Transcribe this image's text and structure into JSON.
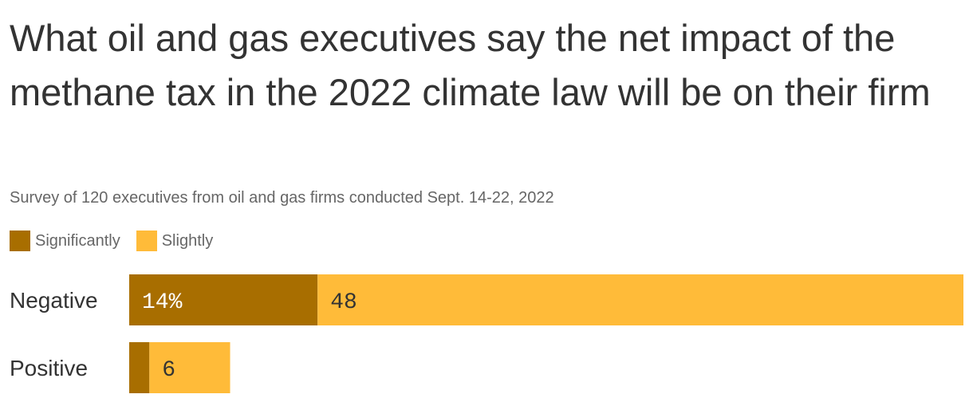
{
  "chart_data": {
    "type": "bar",
    "orientation": "horizontal",
    "stacked": true,
    "title": "What oil and gas executives say the net impact of the methane tax in the 2022 climate law will be on their firm",
    "subtitle": "Survey of 120 executives from oil and gas firms conducted Sept. 14-22, 2022",
    "categories": [
      "Negative",
      "Positive"
    ],
    "series": [
      {
        "name": "Significantly",
        "color": "#a86e00",
        "values": [
          14,
          1.5
        ],
        "labels": [
          "14%",
          ""
        ],
        "label_color": "#ffffff"
      },
      {
        "name": "Slightly",
        "color": "#ffbb39",
        "values": [
          48,
          6
        ],
        "labels": [
          "48",
          "6"
        ],
        "label_color": "#333333"
      }
    ],
    "xlim": [
      0,
      62
    ],
    "legend_position": "top-left",
    "grid": false
  }
}
